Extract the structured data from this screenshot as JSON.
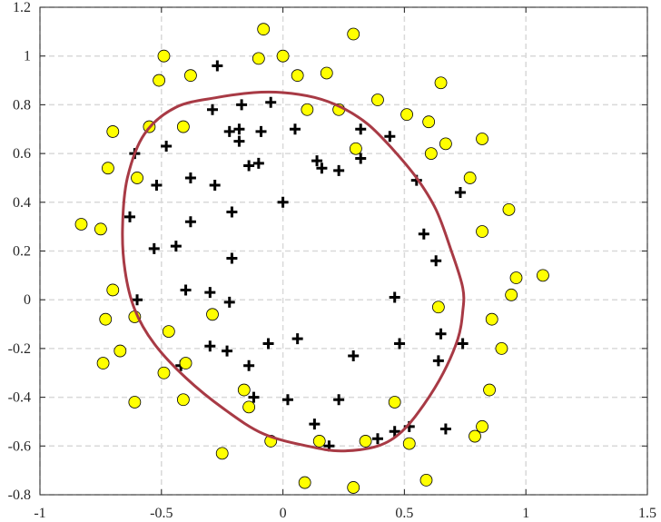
{
  "chart_data": {
    "type": "scatter",
    "title": "",
    "xlabel": "",
    "ylabel": "",
    "xlim": [
      -1,
      1.5
    ],
    "ylim": [
      -0.8,
      1.2
    ],
    "xticks": [
      -1,
      -0.5,
      0,
      0.5,
      1,
      1.5
    ],
    "xtick_labels": [
      "-1",
      "-0.5",
      "0",
      "0.5",
      "1",
      "1.5"
    ],
    "yticks": [
      -0.8,
      -0.6,
      -0.4,
      -0.2,
      0,
      0.2,
      0.4,
      0.6,
      0.8,
      1,
      1.2
    ],
    "ytick_labels": [
      "-0.8",
      "-0.6",
      "-0.4",
      "-0.2",
      "0",
      "0.2",
      "0.4",
      "0.6",
      "0.8",
      "1",
      "1.2"
    ],
    "grid": true,
    "grid_style": "dashed",
    "colors": {
      "negative_fill": "#ffff00",
      "negative_edge": "#000000",
      "positive_marker": "#000000",
      "boundary": "#a83a45",
      "grid": "#d9d9d9",
      "axis": "#262626"
    },
    "series": [
      {
        "marker": "plus",
        "points": [
          [
            -0.61,
            0.6
          ],
          [
            -0.48,
            0.63
          ],
          [
            -0.52,
            0.47
          ],
          [
            -0.38,
            0.5
          ],
          [
            -0.63,
            0.34
          ],
          [
            -0.38,
            0.32
          ],
          [
            -0.53,
            0.21
          ],
          [
            -0.44,
            0.22
          ],
          [
            -0.29,
            0.78
          ],
          [
            -0.27,
            0.96
          ],
          [
            -0.17,
            0.8
          ],
          [
            -0.22,
            0.69
          ],
          [
            -0.18,
            0.7
          ],
          [
            -0.18,
            0.65
          ],
          [
            -0.09,
            0.69
          ],
          [
            -0.05,
            0.81
          ],
          [
            -0.28,
            0.47
          ],
          [
            -0.14,
            0.55
          ],
          [
            -0.1,
            0.56
          ],
          [
            -0.21,
            0.36
          ],
          [
            -0.21,
            0.17
          ],
          [
            -0.6,
            0.0
          ],
          [
            -0.4,
            0.04
          ],
          [
            -0.3,
            0.03
          ],
          [
            -0.22,
            -0.01
          ],
          [
            -0.3,
            -0.19
          ],
          [
            -0.23,
            -0.21
          ],
          [
            -0.42,
            -0.27
          ],
          [
            -0.14,
            -0.27
          ],
          [
            -0.12,
            -0.4
          ],
          [
            -0.06,
            -0.18
          ],
          [
            0.06,
            -0.16
          ],
          [
            0.02,
            -0.41
          ],
          [
            0.0,
            0.4
          ],
          [
            0.05,
            0.7
          ],
          [
            0.14,
            0.57
          ],
          [
            0.16,
            0.54
          ],
          [
            0.23,
            0.53
          ],
          [
            0.32,
            0.7
          ],
          [
            0.32,
            0.58
          ],
          [
            0.44,
            0.67
          ],
          [
            0.55,
            0.49
          ],
          [
            0.58,
            0.27
          ],
          [
            0.63,
            0.16
          ],
          [
            0.73,
            0.44
          ],
          [
            0.46,
            0.01
          ],
          [
            0.48,
            -0.18
          ],
          [
            0.65,
            -0.14
          ],
          [
            0.74,
            -0.18
          ],
          [
            0.64,
            -0.25
          ],
          [
            0.29,
            -0.23
          ],
          [
            0.23,
            -0.41
          ],
          [
            0.13,
            -0.51
          ],
          [
            0.19,
            -0.6
          ],
          [
            0.39,
            -0.57
          ],
          [
            0.46,
            -0.54
          ],
          [
            0.52,
            -0.52
          ],
          [
            0.67,
            -0.53
          ]
        ]
      },
      {
        "marker": "circle",
        "points": [
          [
            -0.83,
            0.31
          ],
          [
            -0.75,
            0.29
          ],
          [
            -0.72,
            0.54
          ],
          [
            -0.7,
            0.69
          ],
          [
            -0.55,
            0.71
          ],
          [
            -0.6,
            0.5
          ],
          [
            -0.51,
            0.9
          ],
          [
            -0.49,
            1.0
          ],
          [
            -0.38,
            0.92
          ],
          [
            -0.41,
            0.71
          ],
          [
            -0.1,
            0.99
          ],
          [
            -0.08,
            1.11
          ],
          [
            0.0,
            1.0
          ],
          [
            0.06,
            0.92
          ],
          [
            0.1,
            0.78
          ],
          [
            0.18,
            0.93
          ],
          [
            0.23,
            0.78
          ],
          [
            0.29,
            1.09
          ],
          [
            0.3,
            0.62
          ],
          [
            0.39,
            0.82
          ],
          [
            0.51,
            0.76
          ],
          [
            0.6,
            0.73
          ],
          [
            0.65,
            0.89
          ],
          [
            0.67,
            0.64
          ],
          [
            0.61,
            0.6
          ],
          [
            0.77,
            0.5
          ],
          [
            0.82,
            0.66
          ],
          [
            0.82,
            0.28
          ],
          [
            0.93,
            0.37
          ],
          [
            0.96,
            0.09
          ],
          [
            1.07,
            0.1
          ],
          [
            0.94,
            0.02
          ],
          [
            0.64,
            -0.03
          ],
          [
            0.86,
            -0.08
          ],
          [
            0.9,
            -0.2
          ],
          [
            0.85,
            -0.37
          ],
          [
            0.82,
            -0.52
          ],
          [
            0.79,
            -0.56
          ],
          [
            0.46,
            -0.42
          ],
          [
            0.52,
            -0.59
          ],
          [
            0.34,
            -0.58
          ],
          [
            0.59,
            -0.74
          ],
          [
            0.29,
            -0.77
          ],
          [
            0.15,
            -0.58
          ],
          [
            0.09,
            -0.75
          ],
          [
            -0.05,
            -0.58
          ],
          [
            -0.14,
            -0.44
          ],
          [
            -0.16,
            -0.37
          ],
          [
            -0.25,
            -0.63
          ],
          [
            -0.41,
            -0.41
          ],
          [
            -0.4,
            -0.26
          ],
          [
            -0.49,
            -0.3
          ],
          [
            -0.47,
            -0.13
          ],
          [
            -0.29,
            -0.06
          ],
          [
            -0.61,
            -0.42
          ],
          [
            -0.74,
            -0.26
          ],
          [
            -0.67,
            -0.21
          ],
          [
            -0.73,
            -0.08
          ],
          [
            -0.61,
            -0.07
          ],
          [
            -0.7,
            0.04
          ]
        ]
      }
    ],
    "boundary": [
      [
        0.0,
        0.85
      ],
      [
        0.13,
        0.83
      ],
      [
        0.24,
        0.79
      ],
      [
        0.35,
        0.72
      ],
      [
        0.45,
        0.62
      ],
      [
        0.55,
        0.5
      ],
      [
        0.63,
        0.37
      ],
      [
        0.69,
        0.21
      ],
      [
        0.74,
        0.05
      ],
      [
        0.74,
        -0.05
      ],
      [
        0.72,
        -0.16
      ],
      [
        0.66,
        -0.3
      ],
      [
        0.58,
        -0.43
      ],
      [
        0.49,
        -0.54
      ],
      [
        0.39,
        -0.6
      ],
      [
        0.24,
        -0.62
      ],
      [
        0.1,
        -0.6
      ],
      [
        -0.08,
        -0.55
      ],
      [
        -0.24,
        -0.45
      ],
      [
        -0.4,
        -0.32
      ],
      [
        -0.53,
        -0.18
      ],
      [
        -0.61,
        -0.04
      ],
      [
        -0.65,
        0.12
      ],
      [
        -0.66,
        0.3
      ],
      [
        -0.64,
        0.5
      ],
      [
        -0.57,
        0.68
      ],
      [
        -0.44,
        0.79
      ],
      [
        -0.27,
        0.83
      ],
      [
        -0.12,
        0.85
      ],
      [
        0.0,
        0.85
      ]
    ]
  }
}
